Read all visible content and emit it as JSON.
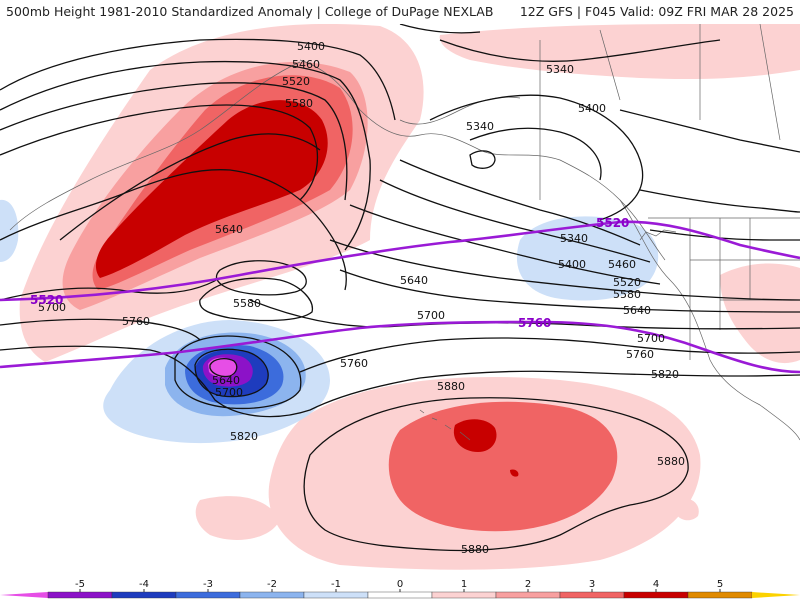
{
  "header": {
    "title": "500mb Height 1981-2010 Standardized Anomaly | College of DuPage NEXLAB",
    "valid": "12Z GFS | F045 Valid: 09Z FRI MAR 28 2025"
  },
  "contour_labels": [
    {
      "id": "c5400a",
      "text": "5400"
    },
    {
      "id": "c5460",
      "text": "5460"
    },
    {
      "id": "c5520",
      "text": "5520"
    },
    {
      "id": "c5580a",
      "text": "5580"
    },
    {
      "id": "c5640a",
      "text": "5640"
    },
    {
      "id": "c5580b",
      "text": "5580"
    },
    {
      "id": "c5700a",
      "text": "5700"
    },
    {
      "id": "c5760a",
      "text": "5760"
    },
    {
      "id": "c5640b",
      "text": "5640"
    },
    {
      "id": "c5700b",
      "text": "5700"
    },
    {
      "id": "c5760b",
      "text": "5760"
    },
    {
      "id": "c5820a",
      "text": "5820"
    },
    {
      "id": "c5340a",
      "text": "5340"
    },
    {
      "id": "c5400b",
      "text": "5400"
    },
    {
      "id": "c5340b",
      "text": "5340"
    },
    {
      "id": "c5340c",
      "text": "5340"
    },
    {
      "id": "c5400c",
      "text": "5400"
    },
    {
      "id": "c5460b",
      "text": "5460"
    },
    {
      "id": "c5520b",
      "text": "5520"
    },
    {
      "id": "c5580c",
      "text": "5580"
    },
    {
      "id": "c5640c",
      "text": "5640"
    },
    {
      "id": "c5640d",
      "text": "5640"
    },
    {
      "id": "c5700c",
      "text": "5700"
    },
    {
      "id": "c5700d",
      "text": "5700"
    },
    {
      "id": "c5760c",
      "text": "5760"
    },
    {
      "id": "c5820b",
      "text": "5820"
    },
    {
      "id": "c5880a",
      "text": "5880"
    },
    {
      "id": "c5880b",
      "text": "5880"
    },
    {
      "id": "c5880c",
      "text": "5880"
    }
  ],
  "highlighted_labels": [
    {
      "id": "h5520a",
      "text": "5520"
    },
    {
      "id": "h5520b",
      "text": "5520"
    },
    {
      "id": "h5760",
      "text": "5760"
    }
  ],
  "legend": {
    "ticks": [
      "-5",
      "-4",
      "-3",
      "-2",
      "-1",
      "0",
      "1",
      "2",
      "3",
      "4",
      "5"
    ],
    "colors": [
      "#e64ee6",
      "#8c12c8",
      "#1e3cbe",
      "#3c6cdc",
      "#8cb4ee",
      "#cde0f8",
      "#ffffff",
      "#fcd2d2",
      "#f8a0a0",
      "#f06464",
      "#c80000",
      "#e08a00",
      "#fcd200"
    ]
  }
}
